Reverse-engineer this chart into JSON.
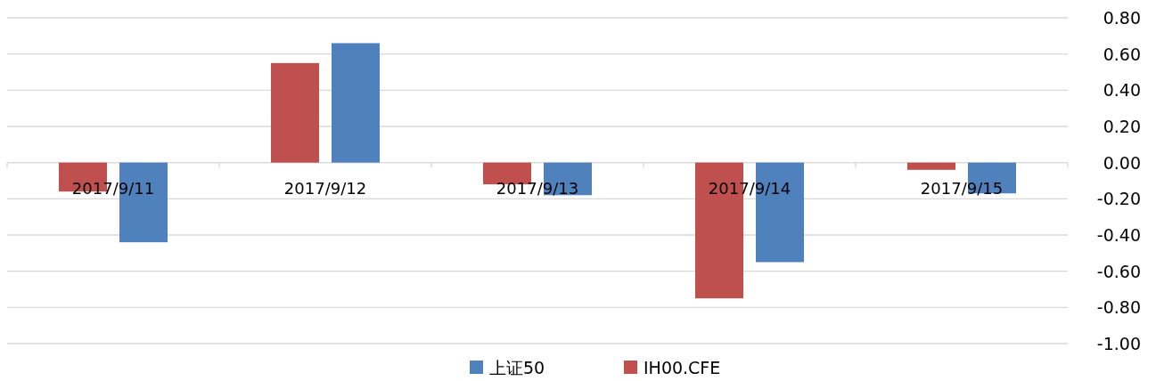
{
  "chart_data": {
    "type": "bar",
    "categories": [
      "2017/9/11",
      "2017/9/12",
      "2017/9/13",
      "2017/9/14",
      "2017/9/15"
    ],
    "series": [
      {
        "name": "上证50",
        "color": "#4f81bd",
        "values": [
          -0.44,
          0.66,
          -0.18,
          -0.55,
          -0.17
        ]
      },
      {
        "name": "IH00.CFE",
        "color": "#c0504d",
        "values": [
          -0.16,
          0.55,
          -0.12,
          -0.75,
          -0.04
        ]
      }
    ],
    "ylim": [
      -1.0,
      0.8
    ],
    "yticks": [
      {
        "value": 0.8,
        "label": "0.80"
      },
      {
        "value": 0.6,
        "label": "0.60"
      },
      {
        "value": 0.4,
        "label": "0.40"
      },
      {
        "value": 0.2,
        "label": "0.20"
      },
      {
        "value": 0,
        "label": "0.00"
      },
      {
        "value": -0.2,
        "label": "-0.20"
      },
      {
        "value": -0.4,
        "label": "-0.40"
      },
      {
        "value": -0.6,
        "label": "-0.60"
      },
      {
        "value": -0.8,
        "label": "-0.80"
      },
      {
        "value": -1.0,
        "label": "-1.00"
      }
    ],
    "grid": "y",
    "legend": "bottom"
  }
}
